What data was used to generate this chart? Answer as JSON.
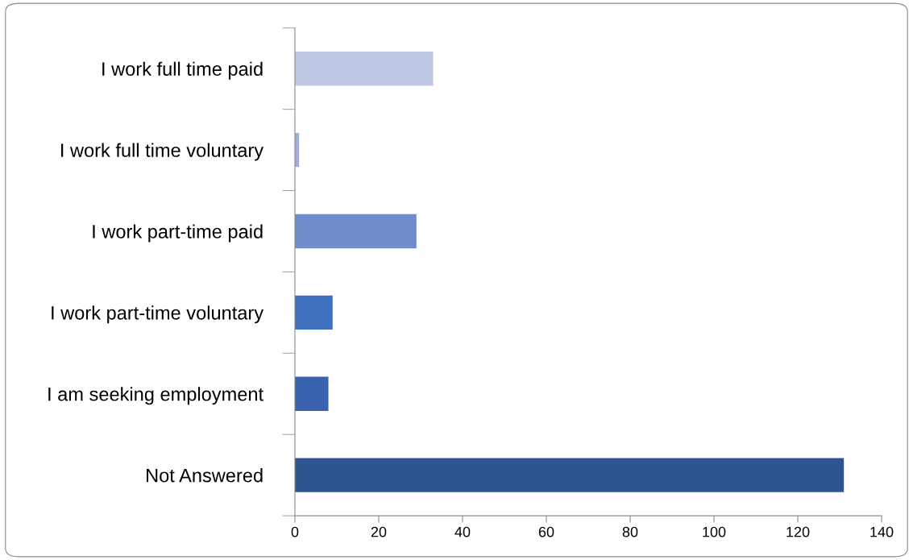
{
  "chart_data": {
    "type": "bar",
    "orientation": "horizontal",
    "categories": [
      "I work full time paid",
      "I work full time voluntary",
      "I work part-time paid",
      "I work part-time voluntary",
      "I am seeking employment",
      "Not Answered"
    ],
    "values": [
      33,
      1,
      29,
      9,
      8,
      131
    ],
    "colors": [
      "#c0c9e4",
      "#9eadd9",
      "#6f8ccd",
      "#3f70c0",
      "#3a62ae",
      "#2f5591"
    ],
    "xlim": [
      0,
      140
    ],
    "xticks": [
      0,
      20,
      40,
      60,
      80,
      100,
      120,
      140
    ],
    "grid": false,
    "legend": false
  }
}
